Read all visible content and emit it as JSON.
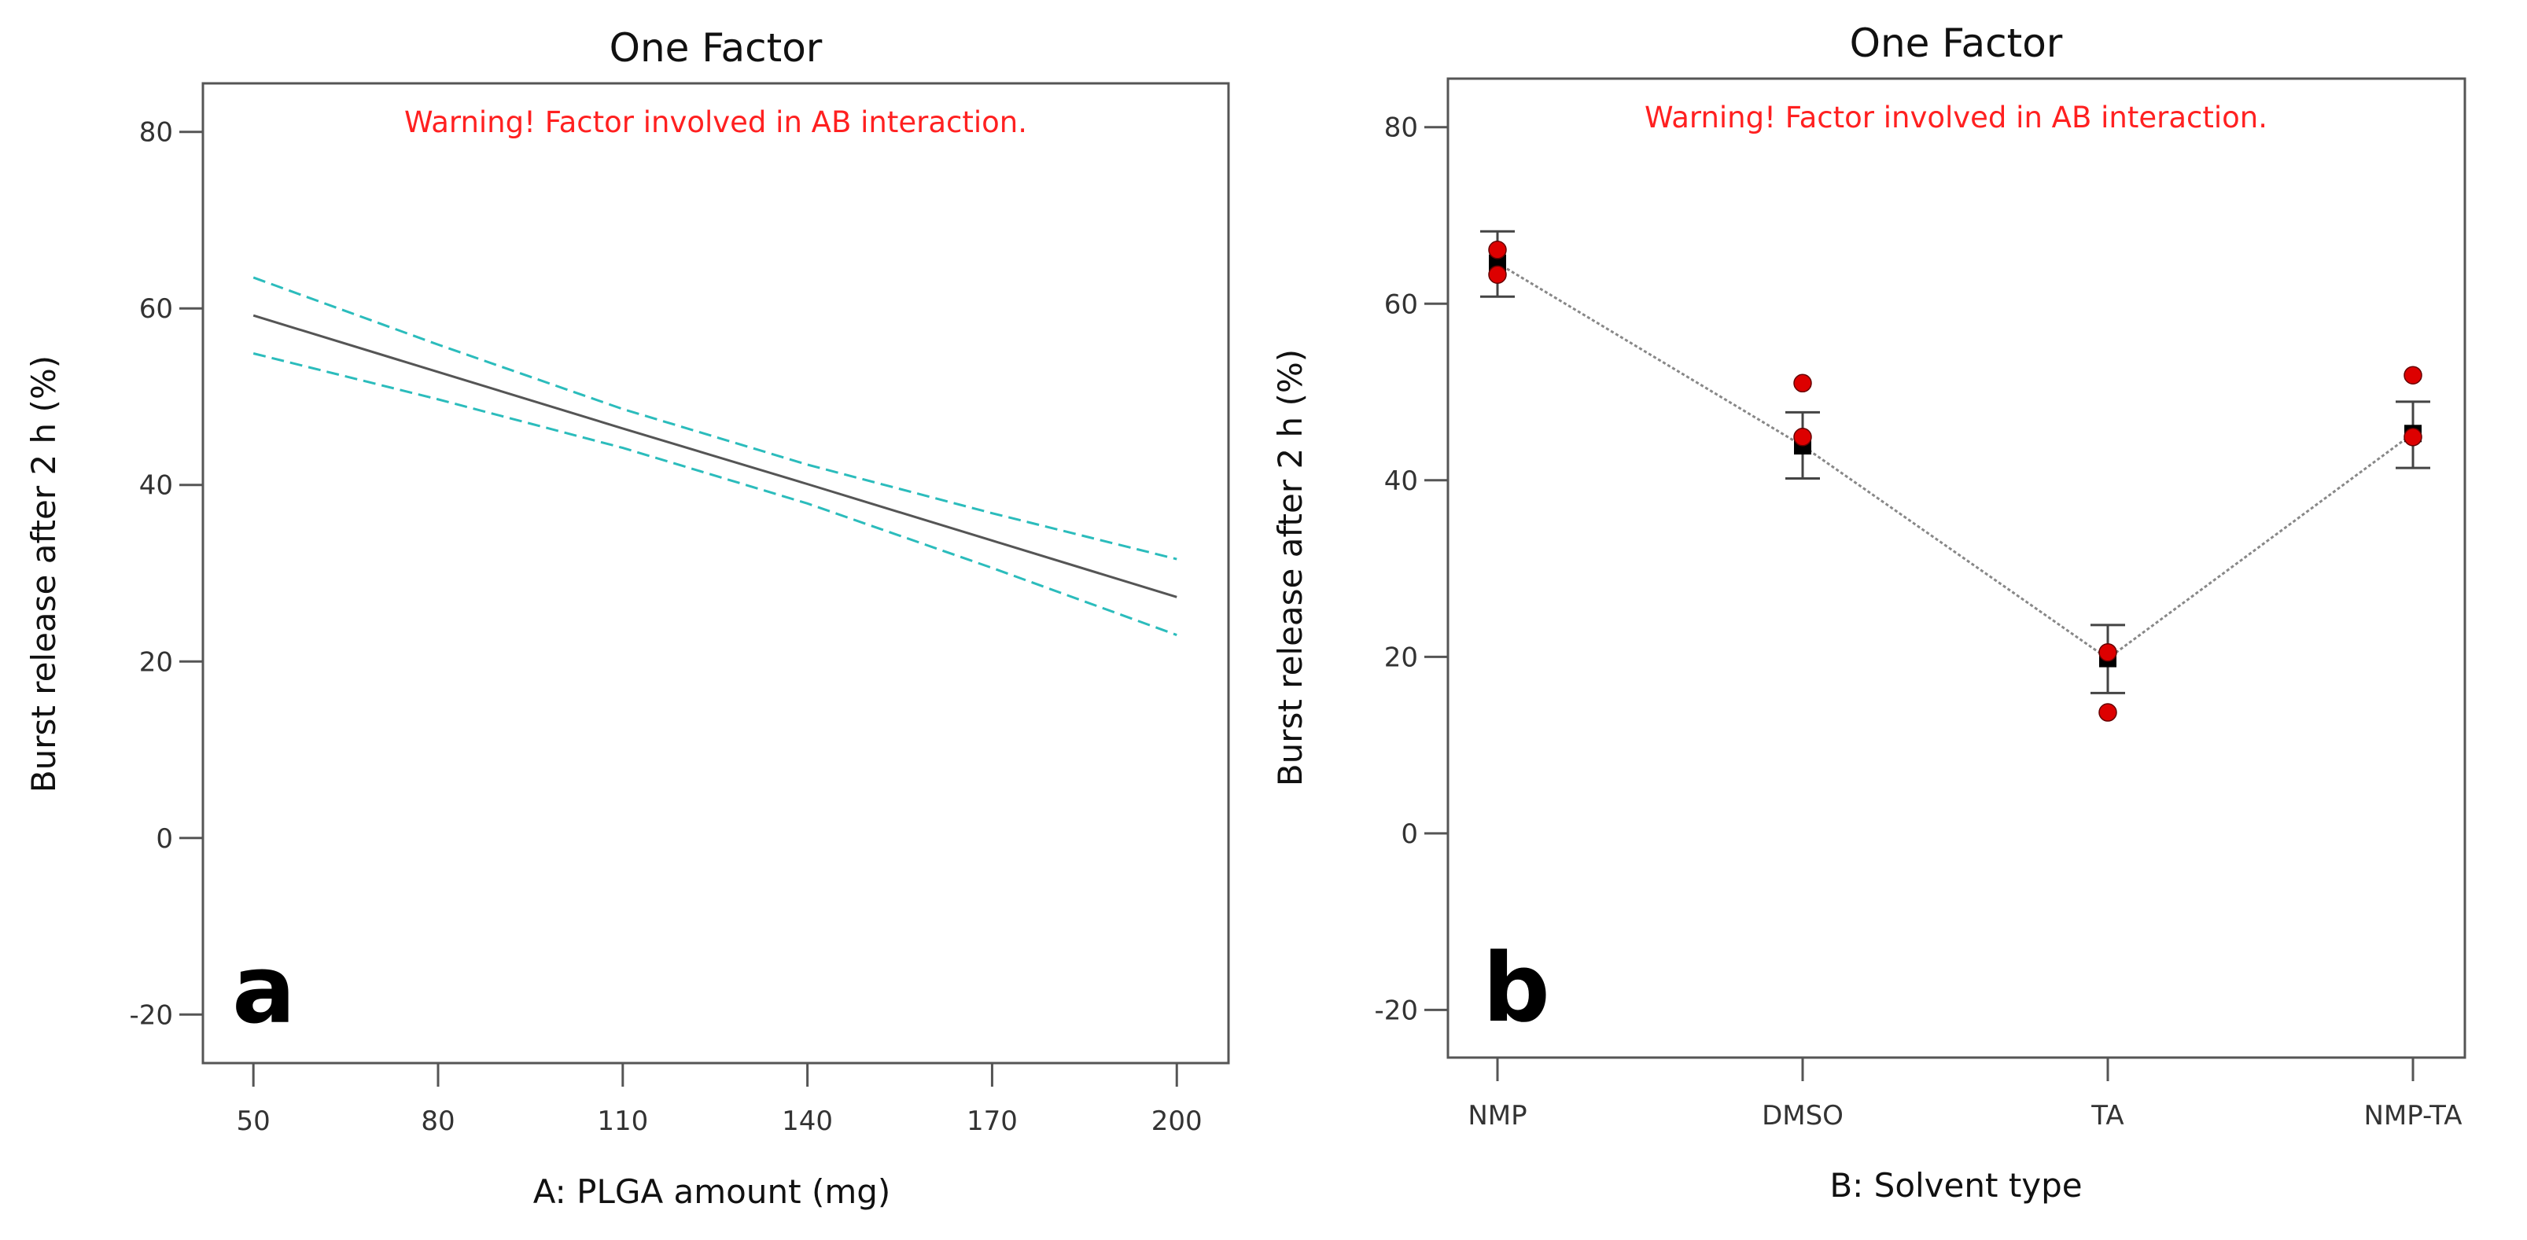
{
  "chart_data": [
    {
      "type": "line",
      "panel_letter": "a",
      "title": "One Factor",
      "warning": "Warning! Factor involved in AB interaction.",
      "xlabel": "A: PLGA amount  (mg)",
      "ylabel": "Burst release after 2 h (%)",
      "xlim": [
        41.8,
        208.4
      ],
      "ylim": [
        -25.5,
        85.5
      ],
      "xticks": [
        50,
        80,
        110,
        140,
        170,
        200
      ],
      "yticks": [
        -20,
        0,
        20,
        40,
        60,
        80
      ],
      "x": [
        50,
        80,
        110,
        140,
        170,
        200
      ],
      "series": [
        {
          "name": "prediction",
          "style": "solid",
          "color": "#555555",
          "values": [
            59.2,
            52.8,
            46.4,
            40.1,
            33.7,
            27.3
          ]
        },
        {
          "name": "upper CI",
          "style": "dashed",
          "color": "#2bbcbc",
          "values": [
            63.5,
            55.9,
            48.6,
            42.3,
            36.8,
            31.6
          ]
        },
        {
          "name": "lower CI",
          "style": "dashed",
          "color": "#2bbcbc",
          "values": [
            54.9,
            49.7,
            44.2,
            37.9,
            30.6,
            23.0
          ]
        }
      ]
    },
    {
      "type": "scatter",
      "panel_letter": "b",
      "title": "One Factor",
      "warning": "Warning! Factor involved in AB interaction.",
      "xlabel": "B: Solvent type",
      "ylabel": "Burst release after 2 h (%)",
      "categories": [
        "NMP",
        "DMSO",
        "TA",
        "NMP-TA"
      ],
      "ylim": [
        -25.4,
        85.5
      ],
      "yticks": [
        -20,
        0,
        20,
        40,
        60,
        80
      ],
      "means": [
        64.6,
        43.9,
        19.8,
        45.3
      ],
      "error_high": [
        68.2,
        47.7,
        23.6,
        48.9
      ],
      "error_low": [
        60.8,
        40.2,
        15.9,
        41.4
      ],
      "observations": [
        [
          66.1,
          63.3
        ],
        [
          51.0,
          44.9
        ],
        [
          20.5,
          13.7
        ],
        [
          51.9,
          44.9
        ]
      ],
      "colors": {
        "mean": "#000000",
        "observation": "#dd0000",
        "line": "#888888"
      }
    }
  ]
}
